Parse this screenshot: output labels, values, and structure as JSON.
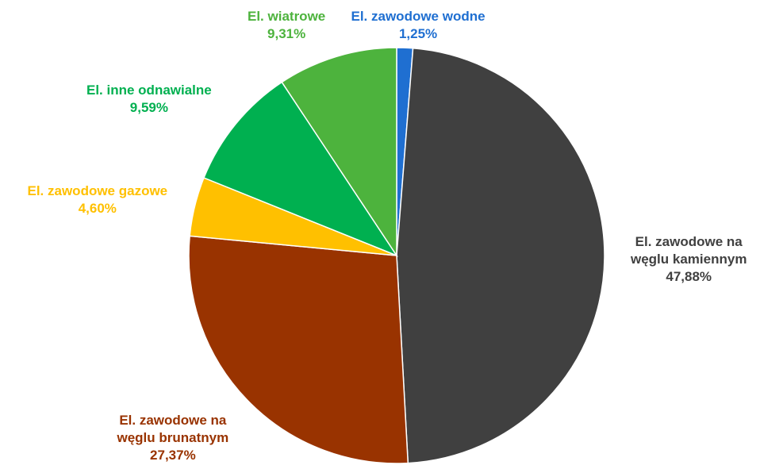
{
  "chart_data": {
    "type": "pie",
    "title": "",
    "start_angle_deg": 0,
    "direction": "clockwise",
    "slices": [
      {
        "label_lines": [
          "El. zawodowe wodne"
        ],
        "value": 1.25,
        "value_label": "1,25%",
        "color": "#1F6FD1",
        "label_color": "#1F6FD1"
      },
      {
        "label_lines": [
          "El. zawodowe na",
          "węglu kamiennym"
        ],
        "value": 47.88,
        "value_label": "47,88%",
        "color": "#404040",
        "label_color": "#404040"
      },
      {
        "label_lines": [
          "El. zawodowe na",
          "węglu brunatnym"
        ],
        "value": 27.37,
        "value_label": "27,37%",
        "color": "#993300",
        "label_color": "#993300"
      },
      {
        "label_lines": [
          "El. zawodowe gazowe"
        ],
        "value": 4.6,
        "value_label": "4,60%",
        "color": "#FFC000",
        "label_color": "#FFC000"
      },
      {
        "label_lines": [
          "El. inne odnawialne"
        ],
        "value": 9.59,
        "value_label": "9,59%",
        "color": "#00B050",
        "label_color": "#00B050"
      },
      {
        "label_lines": [
          "El. wiatrowe"
        ],
        "value": 9.31,
        "value_label": "9,31%",
        "color": "#4DB33D",
        "label_color": "#4DB33D"
      }
    ]
  }
}
